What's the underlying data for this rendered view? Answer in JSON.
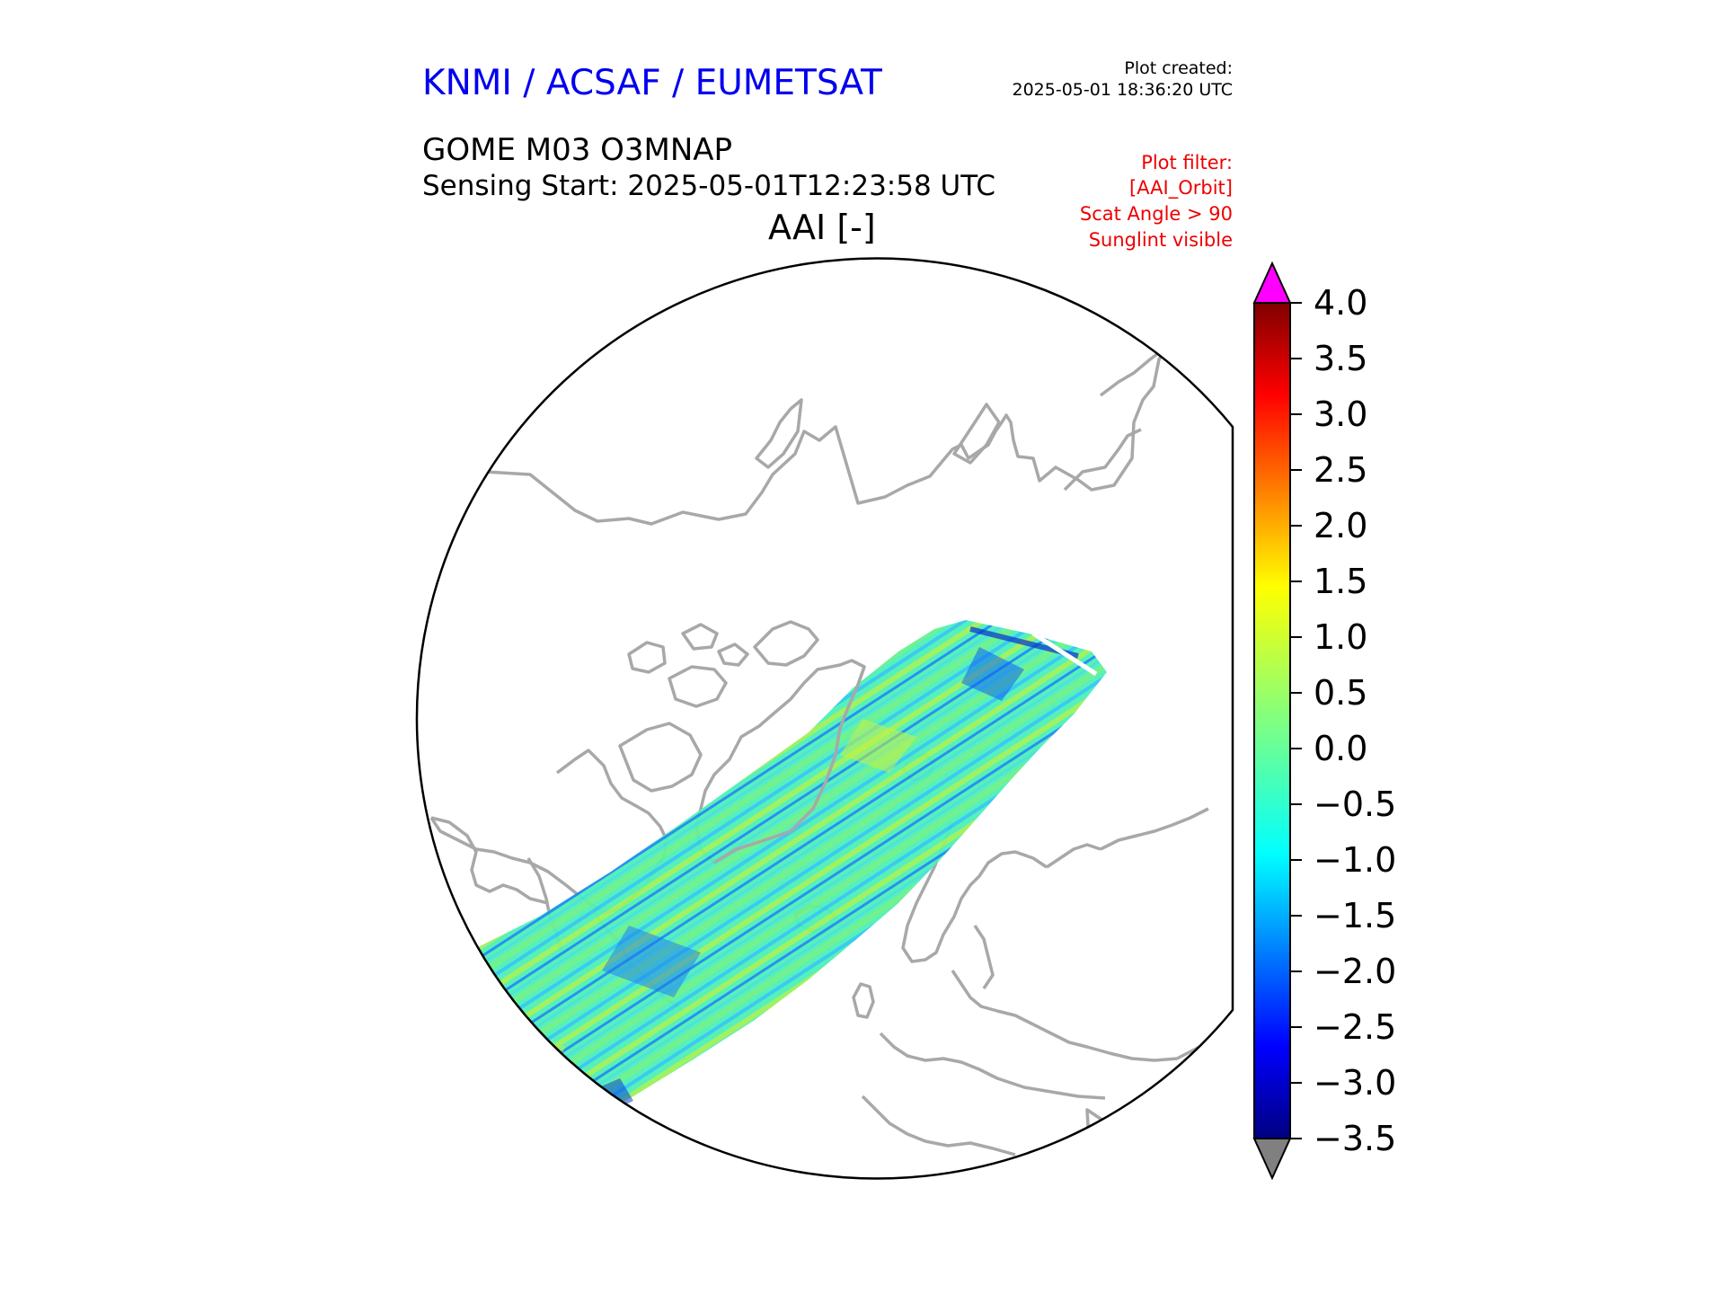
{
  "header": {
    "organization": "KNMI / ACSAF / EUMETSAT",
    "plot_created_label": "Plot created:",
    "plot_created_time": "2025-05-01 18:36:20 UTC",
    "product": "GOME M03 O3MNAP",
    "sensing_start": "Sensing Start: 2025-05-01T12:23:58 UTC",
    "variable": "AAI [-]"
  },
  "filters": [
    "Plot filter:",
    "[AAI_Orbit]",
    "Scat Angle > 90",
    "Sunglint visible"
  ],
  "colors": {
    "title": "#0000ee",
    "filter_text": "#ee0000",
    "coastline": "#a8a8a8",
    "over_color": "#ff00ff",
    "under_color": "#808080"
  },
  "colorbar": {
    "min": -3.5,
    "max": 4.0,
    "colormap": "jet",
    "extend": "both",
    "ticks": [
      "4.0",
      "3.5",
      "3.0",
      "2.5",
      "2.0",
      "1.5",
      "1.0",
      "0.5",
      "0.0",
      "−0.5",
      "−1.0",
      "−1.5",
      "−2.0",
      "−2.5",
      "−3.0",
      "−3.5"
    ]
  },
  "map": {
    "projection": "north-polar-orthographic",
    "swath_value_range": [
      -3.0,
      1.5
    ]
  }
}
